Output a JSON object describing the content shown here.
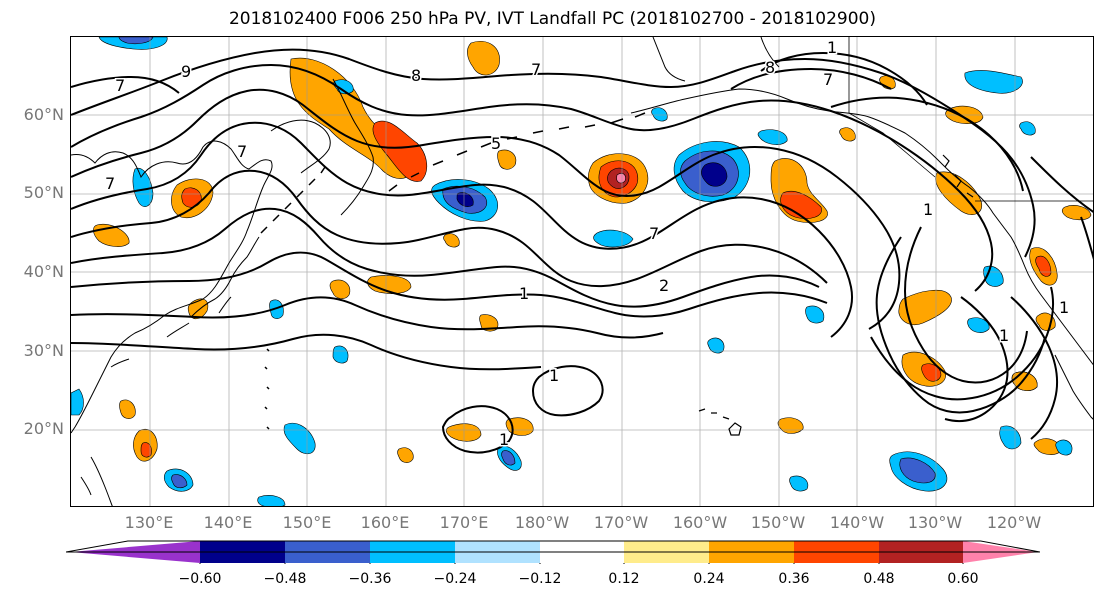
{
  "title": "2018102400 F006 250 hPa PV, IVT Landfall PC (2018102700 - 2018102900)",
  "lat_labels": [
    "60°N",
    "50°N",
    "40°N",
    "30°N",
    "20°N"
  ],
  "lon_labels": [
    "130°E",
    "140°E",
    "150°E",
    "160°E",
    "170°E",
    "180°W",
    "170°W",
    "160°W",
    "150°W",
    "140°W",
    "130°W",
    "120°W"
  ],
  "contour_labels": [
    "9",
    "8",
    "7",
    "7",
    "7",
    "7",
    "5",
    "8",
    "7",
    "7",
    "1",
    "2",
    "1",
    "1",
    "1",
    "1",
    "1",
    "1"
  ],
  "colorbar": {
    "tick_labels": [
      "−0.60",
      "−0.48",
      "−0.36",
      "−0.24",
      "−0.12",
      "0.12",
      "0.24",
      "0.36",
      "0.48",
      "0.60"
    ],
    "colors": [
      "#9932CC",
      "#00008B",
      "#3A5FCD",
      "#00BFFF",
      "#B0E2FF",
      "#FFFFFF",
      "#FFEC8B",
      "#FFA500",
      "#FF4500",
      "#B22222",
      "#FF82AB"
    ]
  },
  "map": {
    "projection": "plate carree",
    "lon_range": [
      "120°E",
      "115°W"
    ],
    "lat_range": [
      "10°N",
      "70°N"
    ],
    "gridlines": true,
    "fill_variable": "250 hPa PV PC",
    "contour_variable": "IVT"
  }
}
